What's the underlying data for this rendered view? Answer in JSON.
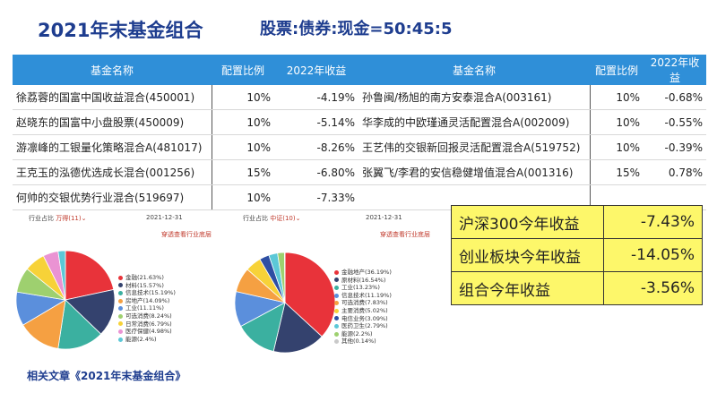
{
  "header": {
    "title": "2021年末基金组合",
    "ratio": "股票:债券:现金=50:45:5"
  },
  "table": {
    "headers": [
      "基金名称",
      "配置比例",
      "2022年收益",
      "基金名称",
      "配置比例",
      "2022年收益"
    ],
    "rows": [
      [
        "徐荔蓉的国富中国收益混合(450001)",
        "10%",
        "-4.19%",
        "孙鲁闽/杨旭的南方安泰混合A(003161)",
        "10%",
        "-0.68%"
      ],
      [
        "赵晓东的国富中小盘股票(450009)",
        "10%",
        "-5.14%",
        "华李成的中欧瑾通灵活配置混合A(002009)",
        "10%",
        "-0.55%"
      ],
      [
        "游凛峰的工银量化策略混合A(481017)",
        "10%",
        "-8.26%",
        "王艺伟的交银新回报灵活配置混合A(519752)",
        "10%",
        "-0.39%"
      ],
      [
        "王克玉的泓德优选成长混合(001256)",
        "15%",
        "-6.80%",
        "张翼飞/李君的安信稳健增值混合A(001316)",
        "15%",
        "0.78%"
      ],
      [
        "何帅的交银优势行业混合(519697)",
        "10%",
        "-7.33%",
        "",
        "",
        ""
      ]
    ]
  },
  "returns": [
    {
      "label": "沪深300今年收益",
      "value": "-7.43%"
    },
    {
      "label": "创业板块今年收益",
      "value": "-14.05%"
    },
    {
      "label": "组合今年收益",
      "value": "-3.56%"
    }
  ],
  "pie_headers": [
    {
      "prefix": "行业占比",
      "source": "万得(11)",
      "date": "2021-12-31",
      "link": "穿透查看行业底层"
    },
    {
      "prefix": "行业占比",
      "source": "中证(10)",
      "date": "2021-12-31",
      "link": "穿透查看行业底层"
    }
  ],
  "footer": "相关文章《2021年末基金组合》",
  "chart_data": [
    {
      "type": "pie",
      "title": "",
      "categories": [
        "金融",
        "材料",
        "信息技术",
        "房地产",
        "工业",
        "可选消费",
        "日常消费",
        "医疗保健",
        "能源"
      ],
      "labels": [
        "金融(21.63%)",
        "材料(15.57%)",
        "信息技术(15.19%)",
        "房地产(14.09%)",
        "工业(11.11%)",
        "可选消费(8.24%)",
        "日常消费(6.79%)",
        "医疗保健(4.98%)",
        "能源(2.4%)"
      ],
      "values": [
        21.63,
        15.57,
        15.19,
        14.09,
        11.11,
        8.24,
        6.79,
        4.98,
        2.4
      ],
      "colors": [
        "#e8333a",
        "#34426e",
        "#3bb0a0",
        "#f5a042",
        "#5b8fdc",
        "#9ed06f",
        "#f7d238",
        "#ea93d3",
        "#5cc8d7"
      ]
    },
    {
      "type": "pie",
      "title": "",
      "categories": [
        "金融地产",
        "原材料",
        "工业",
        "信息技术",
        "可选消费",
        "主要消费",
        "电信业务",
        "医药卫生",
        "能源",
        "其他"
      ],
      "labels": [
        "金融地产(36.19%)",
        "原材料(16.54%)",
        "工业(13.23%)",
        "信息技术(11.19%)",
        "可选消费(7.83%)",
        "主要消费(5.02%)",
        "电信业务(3.09%)",
        "医药卫生(2.79%)",
        "能源(2.2%)",
        "其他(0.14%)"
      ],
      "values": [
        36.19,
        16.54,
        13.23,
        11.19,
        7.83,
        5.02,
        3.09,
        2.79,
        2.2,
        0.14
      ],
      "colors": [
        "#e8333a",
        "#34426e",
        "#3bb0a0",
        "#5b8fdc",
        "#f5a042",
        "#f7d238",
        "#2e4fa3",
        "#5cc8d7",
        "#9ed06f",
        "#c9c9c9"
      ]
    }
  ]
}
